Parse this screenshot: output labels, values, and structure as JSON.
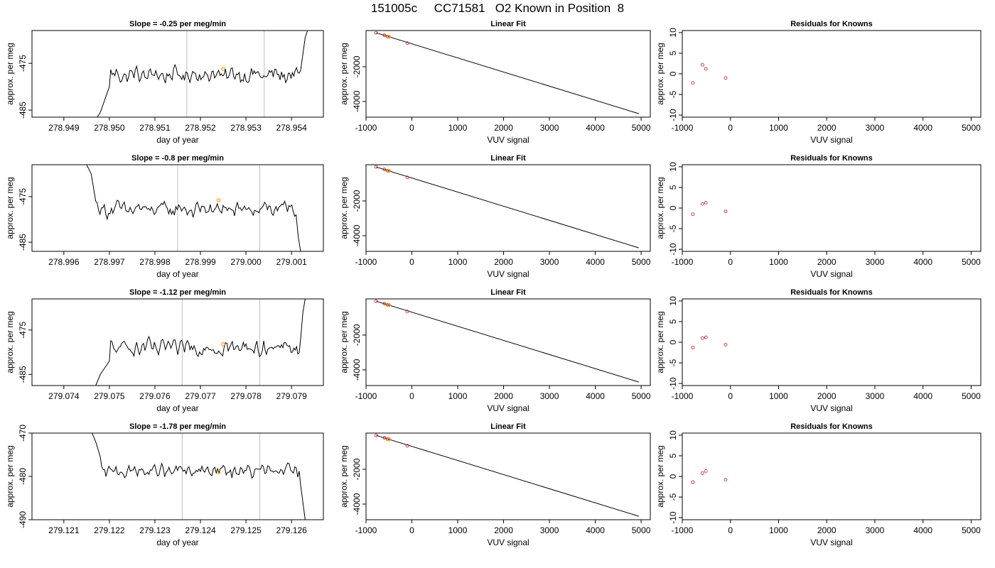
{
  "page": {
    "title": "151005c     CC71581   O2 Known in Position  8"
  },
  "colors": {
    "trace": "#000000",
    "marker_ring": "#cc3333",
    "highlight": "#ff9900",
    "window_line": "#c8c8c8",
    "frame": "#000000"
  },
  "chart_data": [
    {
      "type": "line",
      "row": 1,
      "title": "Slope =  -0.25  per meg/min",
      "xlabel": "day of year",
      "ylabel": "approx. per meg",
      "xlim": [
        278.9483,
        278.9547
      ],
      "ylim": [
        -486.5,
        -468.0
      ],
      "xticks": [
        278.949,
        278.95,
        278.951,
        278.952,
        278.953,
        278.954
      ],
      "xtick_labels": [
        "278.949",
        "278.950",
        "278.951",
        "278.952",
        "278.953",
        "278.954"
      ],
      "yticks": [
        -475,
        -485
      ],
      "ytick_labels": [
        "-475",
        "-485"
      ],
      "trace": {
        "x_start": 278.9497,
        "x_end": 278.9543,
        "base": -477.5,
        "amplitude": 1.6,
        "head": [
          {
            "x": 278.9497,
            "y": -487.0
          },
          {
            "x": 278.9498,
            "y": -485.5
          },
          {
            "x": 278.95,
            "y": -480.0
          }
        ],
        "tail": [
          {
            "x": 278.9542,
            "y": -476.5
          },
          {
            "x": 278.9543,
            "y": -469.5
          },
          {
            "x": 278.95435,
            "y": -468.0
          }
        ]
      },
      "window_lines": [
        278.9517,
        278.9534
      ],
      "highlight_point": {
        "x": 278.9525,
        "y": -476.2
      }
    },
    {
      "type": "line",
      "row": 2,
      "title": "Slope =  -0.8  per meg/min",
      "xlabel": "day of year",
      "ylabel": "approx. per meg",
      "xlim": [
        278.9953,
        279.0017
      ],
      "ylim": [
        -487.0,
        -468.0
      ],
      "xticks": [
        278.996,
        278.997,
        278.998,
        278.999,
        279.0,
        279.001
      ],
      "xtick_labels": [
        "278.996",
        "278.997",
        "278.998",
        "278.999",
        "279.000",
        "279.001"
      ],
      "yticks": [
        -475,
        -485
      ],
      "ytick_labels": [
        "-475",
        "-485"
      ],
      "trace": {
        "x_start": 278.9965,
        "x_end": 279.0012,
        "base": -477.8,
        "amplitude": 1.6,
        "head": [
          {
            "x": 278.9965,
            "y": -468.0
          },
          {
            "x": 278.9966,
            "y": -470.0
          },
          {
            "x": 278.9967,
            "y": -476.0
          }
        ],
        "tail": [
          {
            "x": 279.0011,
            "y": -479.0
          },
          {
            "x": 279.00115,
            "y": -484.0
          },
          {
            "x": 279.0012,
            "y": -487.0
          }
        ]
      },
      "window_lines": [
        278.9985,
        279.0003
      ],
      "highlight_point": {
        "x": 278.9994,
        "y": -475.8
      }
    },
    {
      "type": "line",
      "row": 3,
      "title": "Slope =  -1.12  per meg/min",
      "xlabel": "day of year",
      "ylabel": "approx. per meg",
      "xlim": [
        279.0733,
        279.0797
      ],
      "ylim": [
        -487.5,
        -468.0
      ],
      "xticks": [
        279.074,
        279.075,
        279.076,
        279.077,
        279.078,
        279.079
      ],
      "xtick_labels": [
        "279.074",
        "279.075",
        "279.076",
        "279.077",
        "279.078",
        "279.079"
      ],
      "yticks": [
        -475,
        -485
      ],
      "ytick_labels": [
        "-475",
        "-485"
      ],
      "trace": {
        "x_start": 279.0747,
        "x_end": 279.0793,
        "base": -479.0,
        "amplitude": 1.8,
        "head": [
          {
            "x": 279.0747,
            "y": -487.5
          },
          {
            "x": 279.0748,
            "y": -485.0
          },
          {
            "x": 279.075,
            "y": -482.0
          }
        ],
        "tail": [
          {
            "x": 279.0792,
            "y": -477.0
          },
          {
            "x": 279.07925,
            "y": -471.0
          },
          {
            "x": 279.0793,
            "y": -468.0
          }
        ]
      },
      "window_lines": [
        279.0766,
        279.0783
      ],
      "highlight_point": {
        "x": 279.0775,
        "y": -478.2
      }
    },
    {
      "type": "line",
      "row": 4,
      "title": "Slope =  -1.78  per meg/min",
      "xlabel": "day of year",
      "ylabel": "approx. per meg",
      "xlim": [
        279.1203,
        279.1267
      ],
      "ylim": [
        -490.0,
        -470.0
      ],
      "xticks": [
        279.121,
        279.122,
        279.123,
        279.124,
        279.125,
        279.126
      ],
      "xtick_labels": [
        "279.121",
        "279.122",
        "279.123",
        "279.124",
        "279.125",
        "279.126"
      ],
      "yticks": [
        -470,
        -480,
        -490
      ],
      "ytick_labels": [
        "-470",
        "-480",
        "-490"
      ],
      "trace": {
        "x_start": 279.1216,
        "x_end": 279.1263,
        "base": -478.8,
        "amplitude": 1.6,
        "head": [
          {
            "x": 279.1216,
            "y": -469.5
          },
          {
            "x": 279.1217,
            "y": -472.0
          },
          {
            "x": 279.1218,
            "y": -475.5
          }
        ],
        "tail": [
          {
            "x": 279.1262,
            "y": -482.0
          },
          {
            "x": 279.12625,
            "y": -486.0
          },
          {
            "x": 279.1263,
            "y": -490.0
          }
        ]
      },
      "window_lines": [
        279.1236,
        279.1253
      ],
      "highlight_point": {
        "x": 279.1244,
        "y": -479.0
      }
    },
    {
      "type": "scatter",
      "row": 1,
      "title": "Linear Fit",
      "xlabel": "VUV signal",
      "ylabel": "approx. per meg",
      "xlim": [
        -1000,
        5200
      ],
      "ylim": [
        -4900,
        80
      ],
      "xticks": [
        -1000,
        0,
        1000,
        2000,
        3000,
        4000,
        5000
      ],
      "xtick_labels": [
        "-1000",
        "0",
        "1000",
        "2000",
        "3000",
        "4000",
        "5000"
      ],
      "yticks": [
        -2000,
        -4000
      ],
      "ytick_labels": [
        "-2000",
        "-4000"
      ],
      "points": [
        {
          "x": -780,
          "y": -50
        },
        {
          "x": -600,
          "y": -190
        },
        {
          "x": -530,
          "y": -265
        },
        {
          "x": -100,
          "y": -650
        }
      ],
      "highlight_point": {
        "x": -500,
        "y": -270
      },
      "fit_line": {
        "x": [
          -780,
          4950
        ],
        "y": [
          -50,
          -4700
        ]
      }
    },
    {
      "type": "scatter",
      "row": 2,
      "title": "Linear Fit",
      "xlabel": "VUV signal",
      "ylabel": "approx. per meg",
      "xlim": [
        -1000,
        5200
      ],
      "ylim": [
        -4900,
        80
      ],
      "xticks": [
        -1000,
        0,
        1000,
        2000,
        3000,
        4000,
        5000
      ],
      "xtick_labels": [
        "-1000",
        "0",
        "1000",
        "2000",
        "3000",
        "4000",
        "5000"
      ],
      "yticks": [
        -2000,
        -4000
      ],
      "ytick_labels": [
        "-2000",
        "-4000"
      ],
      "points": [
        {
          "x": -780,
          "y": -50
        },
        {
          "x": -600,
          "y": -190
        },
        {
          "x": -530,
          "y": -265
        },
        {
          "x": -100,
          "y": -650
        }
      ],
      "highlight_point": {
        "x": -500,
        "y": -270
      },
      "fit_line": {
        "x": [
          -780,
          4950
        ],
        "y": [
          -50,
          -4700
        ]
      }
    },
    {
      "type": "scatter",
      "row": 3,
      "title": "Linear Fit",
      "xlabel": "VUV signal",
      "ylabel": "approx. per meg",
      "xlim": [
        -1000,
        5200
      ],
      "ylim": [
        -4900,
        80
      ],
      "xticks": [
        -1000,
        0,
        1000,
        2000,
        3000,
        4000,
        5000
      ],
      "xtick_labels": [
        "-1000",
        "0",
        "1000",
        "2000",
        "3000",
        "4000",
        "5000"
      ],
      "yticks": [
        -2000,
        -4000
      ],
      "ytick_labels": [
        "-2000",
        "-4000"
      ],
      "points": [
        {
          "x": -780,
          "y": -50
        },
        {
          "x": -600,
          "y": -190
        },
        {
          "x": -530,
          "y": -265
        },
        {
          "x": -100,
          "y": -650
        }
      ],
      "highlight_point": {
        "x": -500,
        "y": -270
      },
      "fit_line": {
        "x": [
          -780,
          4950
        ],
        "y": [
          -50,
          -4700
        ]
      }
    },
    {
      "type": "scatter",
      "row": 4,
      "title": "Linear Fit",
      "xlabel": "VUV signal",
      "ylabel": "approx. per meg",
      "xlim": [
        -1000,
        5200
      ],
      "ylim": [
        -4900,
        80
      ],
      "xticks": [
        -1000,
        0,
        1000,
        2000,
        3000,
        4000,
        5000
      ],
      "xtick_labels": [
        "-1000",
        "0",
        "1000",
        "2000",
        "3000",
        "4000",
        "5000"
      ],
      "yticks": [
        -2000,
        -4000
      ],
      "ytick_labels": [
        "-2000",
        "-4000"
      ],
      "points": [
        {
          "x": -780,
          "y": -50
        },
        {
          "x": -600,
          "y": -190
        },
        {
          "x": -530,
          "y": -265
        },
        {
          "x": -100,
          "y": -650
        }
      ],
      "highlight_point": {
        "x": -500,
        "y": -270
      },
      "fit_line": {
        "x": [
          -780,
          4950
        ],
        "y": [
          -50,
          -4700
        ]
      }
    },
    {
      "type": "scatter",
      "row": 1,
      "title": "Residuals for Knowns",
      "xlabel": "VUV signal",
      "ylabel": "approx. per meg",
      "xlim": [
        -1000,
        5200
      ],
      "ylim": [
        -10.5,
        10.5
      ],
      "xticks": [
        -1000,
        0,
        1000,
        2000,
        3000,
        4000,
        5000
      ],
      "xtick_labels": [
        "-1000",
        "0",
        "1000",
        "2000",
        "3000",
        "4000",
        "5000"
      ],
      "yticks": [
        10,
        5,
        0,
        -5,
        -10
      ],
      "ytick_labels": [
        "10",
        "5",
        "0",
        "-5",
        "-10"
      ],
      "points": [
        {
          "x": -780,
          "y": -2.2
        },
        {
          "x": -580,
          "y": 2.2
        },
        {
          "x": -510,
          "y": 1.2
        },
        {
          "x": -100,
          "y": -1.0
        }
      ]
    },
    {
      "type": "scatter",
      "row": 2,
      "title": "Residuals for Knowns",
      "xlabel": "VUV signal",
      "ylabel": "approx. per meg",
      "xlim": [
        -1000,
        5200
      ],
      "ylim": [
        -10.5,
        10.5
      ],
      "xticks": [
        -1000,
        0,
        1000,
        2000,
        3000,
        4000,
        5000
      ],
      "xtick_labels": [
        "-1000",
        "0",
        "1000",
        "2000",
        "3000",
        "4000",
        "5000"
      ],
      "yticks": [
        10,
        5,
        0,
        -5,
        -10
      ],
      "ytick_labels": [
        "10",
        "5",
        "0",
        "-5",
        "-10"
      ],
      "points": [
        {
          "x": -780,
          "y": -1.5
        },
        {
          "x": -580,
          "y": 1.0
        },
        {
          "x": -510,
          "y": 1.3
        },
        {
          "x": -100,
          "y": -0.8
        }
      ]
    },
    {
      "type": "scatter",
      "row": 3,
      "title": "Residuals for Knowns",
      "xlabel": "VUV signal",
      "ylabel": "approx. per meg",
      "xlim": [
        -1000,
        5200
      ],
      "ylim": [
        -10.5,
        10.5
      ],
      "xticks": [
        -1000,
        0,
        1000,
        2000,
        3000,
        4000,
        5000
      ],
      "xtick_labels": [
        "-1000",
        "0",
        "1000",
        "2000",
        "3000",
        "4000",
        "5000"
      ],
      "yticks": [
        10,
        5,
        0,
        -5,
        -10
      ],
      "ytick_labels": [
        "10",
        "5",
        "0",
        "-5",
        "-10"
      ],
      "points": [
        {
          "x": -780,
          "y": -1.3
        },
        {
          "x": -580,
          "y": 1.0
        },
        {
          "x": -510,
          "y": 1.2
        },
        {
          "x": -100,
          "y": -0.6
        }
      ]
    },
    {
      "type": "scatter",
      "row": 4,
      "title": "Residuals for Knowns",
      "xlabel": "VUV signal",
      "ylabel": "approx. per meg",
      "xlim": [
        -1000,
        5200
      ],
      "ylim": [
        -10.5,
        10.5
      ],
      "xticks": [
        -1000,
        0,
        1000,
        2000,
        3000,
        4000,
        5000
      ],
      "xtick_labels": [
        "-1000",
        "0",
        "1000",
        "2000",
        "3000",
        "4000",
        "5000"
      ],
      "yticks": [
        10,
        5,
        0,
        -5,
        -10
      ],
      "ytick_labels": [
        "10",
        "5",
        "0",
        "-5",
        "-10"
      ],
      "points": [
        {
          "x": -780,
          "y": -1.4
        },
        {
          "x": -580,
          "y": 0.8
        },
        {
          "x": -510,
          "y": 1.3
        },
        {
          "x": -100,
          "y": -0.8
        }
      ]
    }
  ]
}
